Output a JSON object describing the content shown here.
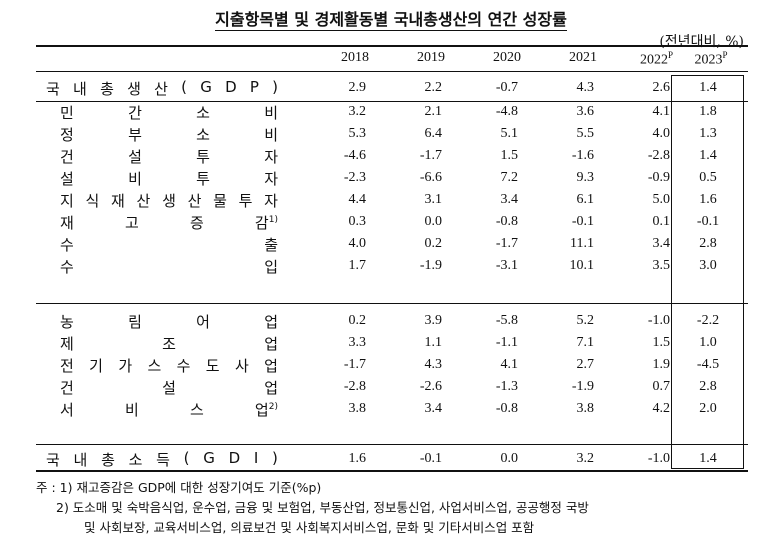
{
  "title": "지출항목별 및 경제활동별 국내총생산의 연간 성장률",
  "unit": "(전년대비, %)",
  "headers": [
    "2018",
    "2019",
    "2020",
    "2021",
    "2022",
    "2023"
  ],
  "header_sup": [
    "",
    "",
    "",
    "",
    "P",
    "P"
  ],
  "gdp": {
    "label": "국내총생산(GDP)",
    "values": [
      "2.9",
      "2.2",
      "-0.7",
      "4.3",
      "2.6",
      "1.4"
    ]
  },
  "expenditure": [
    {
      "label": "민간소비",
      "sup": "",
      "values": [
        "3.2",
        "2.1",
        "-4.8",
        "3.6",
        "4.1",
        "1.8"
      ]
    },
    {
      "label": "정부소비",
      "sup": "",
      "values": [
        "5.3",
        "6.4",
        "5.1",
        "5.5",
        "4.0",
        "1.3"
      ]
    },
    {
      "label": "건설투자",
      "sup": "",
      "values": [
        "-4.6",
        "-1.7",
        "1.5",
        "-1.6",
        "-2.8",
        "1.4"
      ]
    },
    {
      "label": "설비투자",
      "sup": "",
      "values": [
        "-2.3",
        "-6.6",
        "7.2",
        "9.3",
        "-0.9",
        "0.5"
      ]
    },
    {
      "label": "지식재산생산물투자",
      "sup": "",
      "values": [
        "4.4",
        "3.1",
        "3.4",
        "6.1",
        "5.0",
        "1.6"
      ]
    },
    {
      "label": "재고증감",
      "sup": "1)",
      "values": [
        "0.3",
        "0.0",
        "-0.8",
        "-0.1",
        "0.1",
        "-0.1"
      ]
    },
    {
      "label": "수출",
      "sup": "",
      "values": [
        "4.0",
        "0.2",
        "-1.7",
        "11.1",
        "3.4",
        "2.8"
      ]
    },
    {
      "label": "수입",
      "sup": "",
      "values": [
        "1.7",
        "-1.9",
        "-3.1",
        "10.1",
        "3.5",
        "3.0"
      ]
    }
  ],
  "industry": [
    {
      "label": "농림어업",
      "sup": "",
      "values": [
        "0.2",
        "3.9",
        "-5.8",
        "5.2",
        "-1.0",
        "-2.2"
      ]
    },
    {
      "label": "제조업",
      "sup": "",
      "values": [
        "3.3",
        "1.1",
        "-1.1",
        "7.1",
        "1.5",
        "1.0"
      ]
    },
    {
      "label": "전기가스수도사업",
      "sup": "",
      "values": [
        "-1.7",
        "4.3",
        "4.1",
        "2.7",
        "1.9",
        "-4.5"
      ]
    },
    {
      "label": "건설업",
      "sup": "",
      "values": [
        "-2.8",
        "-2.6",
        "-1.3",
        "-1.9",
        "0.7",
        "2.8"
      ]
    },
    {
      "label": "서비스업",
      "sup": "2)",
      "values": [
        "3.8",
        "3.4",
        "-0.8",
        "3.8",
        "4.2",
        "2.0"
      ]
    }
  ],
  "gdi": {
    "label": "국내총소득(GDI)",
    "values": [
      "1.6",
      "-0.1",
      "0.0",
      "3.2",
      "-1.0",
      "1.4"
    ]
  },
  "notes": {
    "prefix": "주 : ",
    "n1": "1) 재고증감은 GDP에 대한 성장기여도 기준(%p)",
    "n2a": "2) 도소매 및 숙박음식업, 운수업, 금융 및 보험업, 부동산업, 정보통신업, 사업서비스업, 공공행정 국방",
    "n2b": "및 사회보장, 교육서비스업, 의료보건 및 사회복지서비스업, 문화 및 기타서비스업 포함"
  }
}
